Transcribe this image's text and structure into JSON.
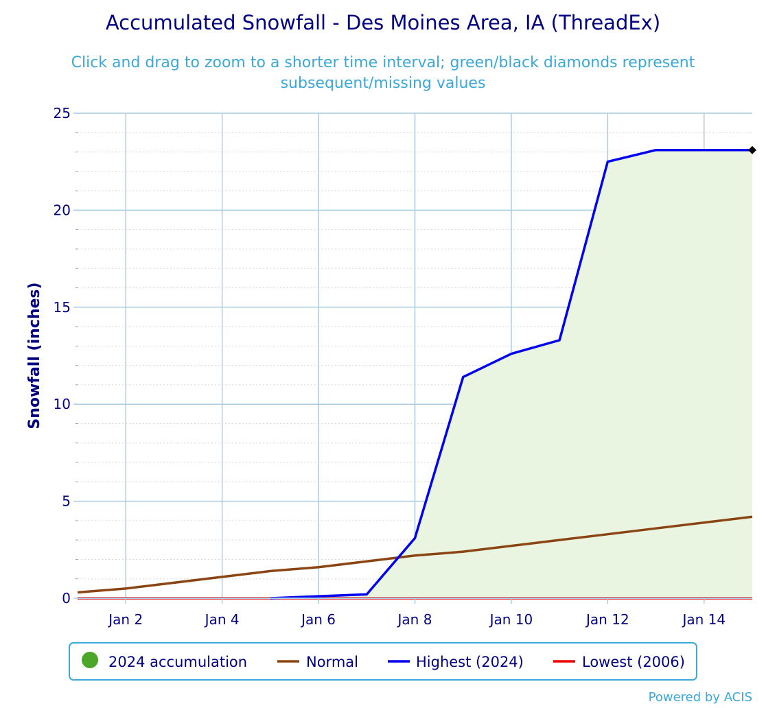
{
  "chart_data": {
    "type": "line",
    "title": "Accumulated Snowfall - Des Moines Area, IA (ThreadEx)",
    "subtitle_lines": [
      "Click and drag to zoom to a shorter time interval; green/black diamonds represent",
      "subsequent/missing values"
    ],
    "ylabel": "Snowfall (inches)",
    "ylim": [
      0,
      25
    ],
    "yticks": [
      0,
      5,
      10,
      15,
      20,
      25
    ],
    "xlim": [
      1,
      15
    ],
    "xticks": [
      {
        "day": 2,
        "label": "Jan 2"
      },
      {
        "day": 4,
        "label": "Jan 4"
      },
      {
        "day": 6,
        "label": "Jan 6"
      },
      {
        "day": 8,
        "label": "Jan 8"
      },
      {
        "day": 10,
        "label": "Jan 10"
      },
      {
        "day": 12,
        "label": "Jan 12"
      },
      {
        "day": 14,
        "label": "Jan 14"
      }
    ],
    "grid": true,
    "legend_position": "bottom",
    "series": [
      {
        "key": "accum",
        "name": "2024 accumulation",
        "kind": "area",
        "color": "#e9f5e1",
        "legend_color": "#4ca62a",
        "x": [
          1,
          2,
          3,
          4,
          5,
          6,
          7,
          8,
          9,
          10,
          11,
          12,
          13,
          14,
          15
        ],
        "y": [
          0,
          0,
          0,
          0,
          0,
          0.1,
          0.2,
          3.1,
          11.4,
          12.6,
          13.3,
          22.5,
          23.1,
          23.1,
          23.1
        ]
      },
      {
        "key": "normal",
        "name": "Normal",
        "kind": "line",
        "color": "#8b4513",
        "x": [
          1,
          2,
          3,
          4,
          5,
          6,
          7,
          8,
          9,
          10,
          11,
          12,
          13,
          14,
          15
        ],
        "y": [
          0.3,
          0.5,
          0.8,
          1.1,
          1.4,
          1.6,
          1.9,
          2.2,
          2.4,
          2.7,
          3.0,
          3.3,
          3.6,
          3.9,
          4.2
        ]
      },
      {
        "key": "highest",
        "name": "Highest (2024)",
        "kind": "line",
        "color": "#0000ee",
        "x": [
          5,
          6,
          7,
          8,
          9,
          10,
          11,
          12,
          13,
          14,
          15
        ],
        "y": [
          0,
          0.1,
          0.2,
          3.1,
          11.4,
          12.6,
          13.3,
          22.5,
          23.1,
          23.1,
          23.1
        ]
      },
      {
        "key": "lowest",
        "name": "Lowest (2006)",
        "kind": "line",
        "color": "#ee0000",
        "x": [
          1,
          15
        ],
        "y": [
          0,
          0
        ]
      }
    ],
    "markers": [
      {
        "kind": "diamond",
        "color": "#000000",
        "x": 15,
        "y": 23.1
      }
    ],
    "credit": "Powered by ACIS"
  }
}
